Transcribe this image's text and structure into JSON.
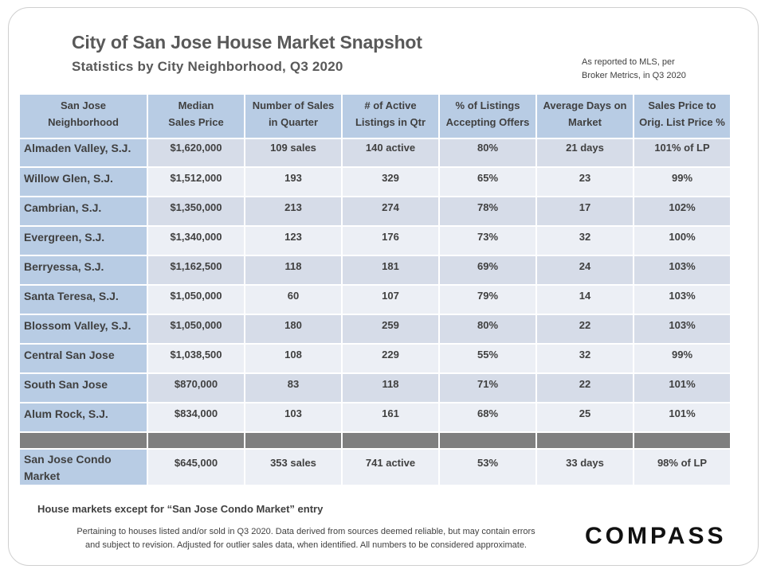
{
  "title": "City of San Jose House Market Snapshot",
  "subtitle": "Statistics by City Neighborhood,  Q3 2020",
  "source_note_line1": "As reported to MLS, per",
  "source_note_line2": "Broker Metrics, in Q3 2020",
  "chart_data": {
    "type": "table",
    "columns": [
      [
        "San Jose",
        "Neighborhood"
      ],
      [
        "Median",
        "Sales Price"
      ],
      [
        "Number of Sales",
        "in Quarter"
      ],
      [
        "# of Active",
        "Listings in Qtr"
      ],
      [
        "% of Listings",
        "Accepting Offers"
      ],
      [
        "Average Days on",
        "Market"
      ],
      [
        "Sales Price to",
        "Orig. List Price %"
      ]
    ],
    "rows": [
      [
        "Almaden Valley, S.J.",
        "$1,620,000",
        "109 sales",
        "140 active",
        "80%",
        "21 days",
        "101% of LP"
      ],
      [
        "Willow Glen, S.J.",
        "$1,512,000",
        "193",
        "329",
        "65%",
        "23",
        "99%"
      ],
      [
        "Cambrian, S.J.",
        "$1,350,000",
        "213",
        "274",
        "78%",
        "17",
        "102%"
      ],
      [
        "Evergreen, S.J.",
        "$1,340,000",
        "123",
        "176",
        "73%",
        "32",
        "100%"
      ],
      [
        "Berryessa, S.J.",
        "$1,162,500",
        "118",
        "181",
        "69%",
        "24",
        "103%"
      ],
      [
        "Santa Teresa, S.J.",
        "$1,050,000",
        "60",
        "107",
        "79%",
        "14",
        "103%"
      ],
      [
        "Blossom Valley, S.J.",
        "$1,050,000",
        "180",
        "259",
        "80%",
        "22",
        "103%"
      ],
      [
        "Central San Jose",
        "$1,038,500",
        "108",
        "229",
        "55%",
        "32",
        "99%"
      ],
      [
        "South San Jose",
        "$870,000",
        "83",
        "118",
        "71%",
        "22",
        "101%"
      ],
      [
        "Alum Rock, S.J.",
        "$834,000",
        "103",
        "161",
        "68%",
        "25",
        "101%"
      ]
    ],
    "condo_row": [
      [
        "San Jose Condo",
        "Market"
      ],
      "$645,000",
      "353 sales",
      "741 active",
      "53%",
      "33 days",
      "98% of LP"
    ]
  },
  "footnote_main": "House markets except for “San Jose Condo Market” entry",
  "footnote_line1": "Pertaining to houses listed and/or sold in Q3 2020. Data derived from sources deemed reliable, but may contain errors",
  "footnote_line2": "and subject to revision. Adjusted for outlier sales data, when identified. All numbers to be considered approximate.",
  "logo_text": "COMPASS",
  "colors": {
    "header_fill": "#b8cce4",
    "row_dark": "#d6dce8",
    "row_light": "#eceff5",
    "separator": "#7f7f7f",
    "text": "#404040"
  }
}
